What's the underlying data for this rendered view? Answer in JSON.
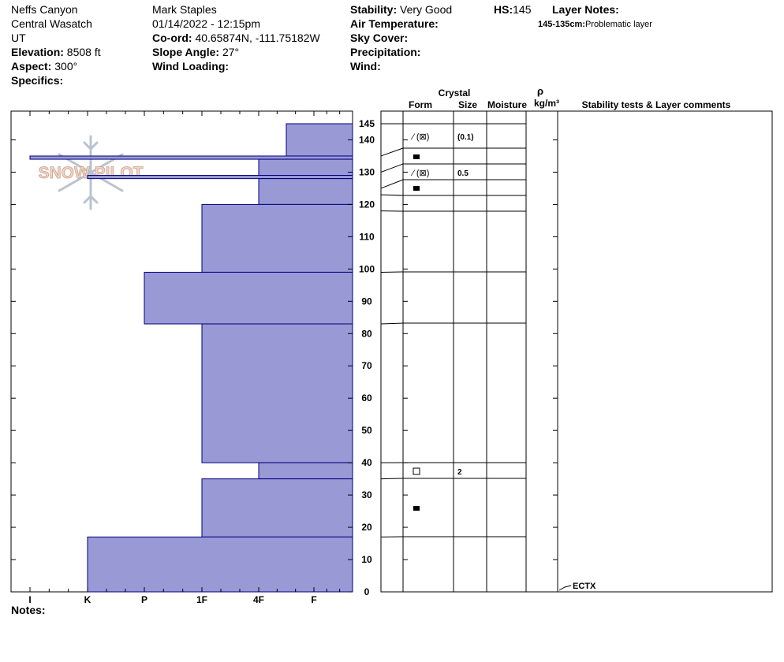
{
  "header": {
    "location": "Neffs Canyon",
    "range": "Central Wasatch",
    "state": "UT",
    "elevation_label": "Elevation:",
    "elevation": "8508 ft",
    "aspect_label": "Aspect:",
    "aspect": "300°",
    "specifics_label": "Specifics:",
    "observer": "Mark Staples",
    "datetime": "01/14/2022 - 12:15pm",
    "coord_label": "Co-ord:",
    "coord": "40.65874N, -111.75182W",
    "slope_label": "Slope Angle:",
    "slope": "27°",
    "wind_loading_label": "Wind Loading:",
    "stability_label": "Stability:",
    "stability": "Very Good",
    "air_temp_label": "Air Temperature:",
    "sky_label": "Sky Cover:",
    "precip_label": "Precipitation:",
    "wind_label": "Wind:",
    "hs_label": "HS:",
    "hs": "145",
    "layer_notes_label": "Layer Notes:",
    "layer_note_range": "145-135cm:",
    "layer_note_text": "Problematic layer"
  },
  "logo_text": "SNOW PILOT",
  "notes_label": "Notes:",
  "chart_data": {
    "type": "snow-profile",
    "hardness_axis": [
      "I",
      "K",
      "P",
      "1F",
      "4F",
      "F"
    ],
    "depth_range": [
      0,
      145
    ],
    "depth_ticks": [
      0,
      10,
      20,
      30,
      40,
      50,
      60,
      70,
      80,
      90,
      100,
      110,
      120,
      130,
      140,
      145
    ],
    "hardness_layers": [
      {
        "top": 145,
        "bottom": 135,
        "hardness": 4.5
      },
      {
        "top": 135,
        "bottom": 134,
        "hardness": 0.0
      },
      {
        "top": 134,
        "bottom": 129,
        "hardness": 4
      },
      {
        "top": 129,
        "bottom": 128,
        "hardness": 1.0
      },
      {
        "top": 128,
        "bottom": 120,
        "hardness": 4
      },
      {
        "top": 120,
        "bottom": 99,
        "hardness": 3
      },
      {
        "top": 99,
        "bottom": 83,
        "hardness": 2
      },
      {
        "top": 83,
        "bottom": 40,
        "hardness": 3
      },
      {
        "top": 40,
        "bottom": 35,
        "hardness": 4
      },
      {
        "top": 35,
        "bottom": 17,
        "hardness": 3
      },
      {
        "top": 17,
        "bottom": 0,
        "hardness": 1
      }
    ],
    "column_headers": {
      "crystal": "Crystal",
      "form": "Form",
      "size": "Size",
      "moisture": "Moisture",
      "rho": "ρ",
      "density_unit": "kg/m³",
      "stability": "Stability tests & Layer comments"
    },
    "layer_boundaries": [
      145,
      135,
      130,
      125,
      123,
      118,
      99,
      83,
      40,
      35,
      17,
      0
    ],
    "crystal_rows": [
      {
        "depth": 140,
        "form": "⁄ (⊠)",
        "size": "(0.1)"
      },
      {
        "depth": 135,
        "form": "■",
        "size": ""
      },
      {
        "depth": 129,
        "form": "⁄ (⊠)",
        "size": "0.5"
      },
      {
        "depth": 125,
        "form": "■",
        "size": ""
      },
      {
        "depth": 37,
        "form": "□",
        "size": "2"
      },
      {
        "depth": 26,
        "form": "■",
        "size": ""
      }
    ],
    "stability_tests": [
      {
        "depth": 0,
        "label": "ECTX"
      }
    ],
    "colors": {
      "fill": "#9999d6",
      "edge": "#000080"
    }
  }
}
